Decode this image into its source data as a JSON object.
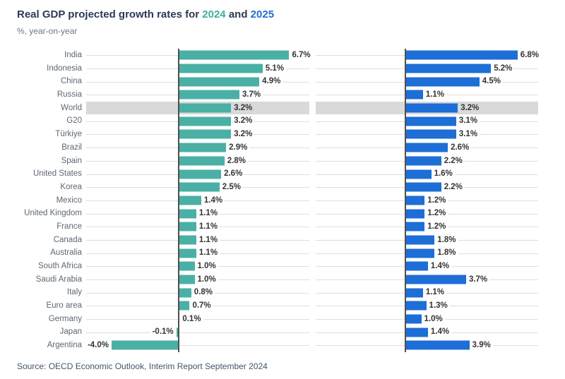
{
  "title": {
    "prefix": "Real GDP projected growth rates for ",
    "year1": "2024",
    "conjunction": " and ",
    "year2": "2025"
  },
  "subtitle": "%, year-on-year",
  "source": "Source: OECD Economic Outlook, Interim Report September 2024",
  "colors": {
    "teal": "#4ab0a5",
    "blue": "#1d6ed6",
    "highlight_band": "#d9d9d9",
    "axis_line": "#4f4f4f",
    "leader_line": "#dedede"
  },
  "chart_data": {
    "type": "bar",
    "orientation": "horizontal",
    "title": "Real GDP projected growth rates for 2024 and 2025",
    "subtitle": "%, year-on-year",
    "value_suffix": "%",
    "highlighted_category": "World",
    "legend_position": "in-title",
    "grid": "leader-lines",
    "xlim": [
      -5.5,
      8.0
    ],
    "categories": [
      "India",
      "Indonesia",
      "China",
      "Russia",
      "World",
      "G20",
      "Türkiye",
      "Brazil",
      "Spain",
      "United States",
      "Korea",
      "Mexico",
      "United Kingdom",
      "France",
      "Canada",
      "Australia",
      "South Africa",
      "Saudi Arabia",
      "Italy",
      "Euro area",
      "Germany",
      "Japan",
      "Argentina"
    ],
    "series": [
      {
        "name": "2024",
        "color": "#4ab0a5",
        "values": [
          6.7,
          5.1,
          4.9,
          3.7,
          3.2,
          3.2,
          3.2,
          2.9,
          2.8,
          2.6,
          2.5,
          1.4,
          1.1,
          1.1,
          1.1,
          1.1,
          1.0,
          1.0,
          0.8,
          0.7,
          0.1,
          -0.1,
          -4.0
        ]
      },
      {
        "name": "2025",
        "color": "#1d6ed6",
        "values": [
          6.8,
          5.2,
          4.5,
          1.1,
          3.2,
          3.1,
          3.1,
          2.6,
          2.2,
          1.6,
          2.2,
          1.2,
          1.2,
          1.2,
          1.8,
          1.8,
          1.4,
          3.7,
          1.1,
          1.3,
          1.0,
          1.4,
          3.9
        ]
      }
    ]
  }
}
